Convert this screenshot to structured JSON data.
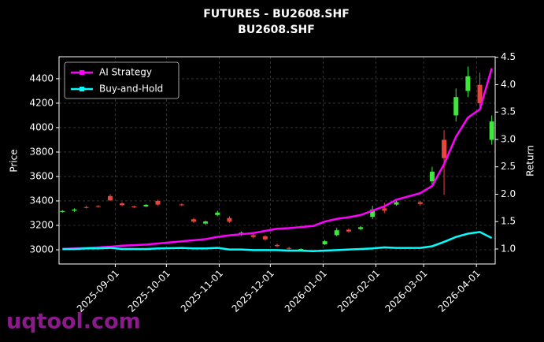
{
  "chart_data": {
    "type": "candlestick",
    "title": "FUTURES - BU2608.SHF",
    "subtitle": "BU2608.SHF",
    "ylabel": "Price",
    "y2label": "Return",
    "watermark": "uqtool.com",
    "x": [
      "2025-08-01",
      "2025-08-08",
      "2025-08-15",
      "2025-08-22",
      "2025-08-29",
      "2025-09-05",
      "2025-09-12",
      "2025-09-19",
      "2025-09-26",
      "2025-10-10",
      "2025-10-17",
      "2025-10-24",
      "2025-10-31",
      "2025-11-07",
      "2025-11-14",
      "2025-11-21",
      "2025-11-28",
      "2025-12-05",
      "2025-12-12",
      "2025-12-19",
      "2025-12-26",
      "2026-01-02",
      "2026-01-09",
      "2026-01-16",
      "2026-01-23",
      "2026-01-30",
      "2026-02-06",
      "2026-02-13",
      "2026-02-27",
      "2026-03-06",
      "2026-03-13",
      "2026-03-20",
      "2026-03-27",
      "2026-04-03",
      "2026-04-10"
    ],
    "open": [
      3310,
      3320,
      3350,
      3358,
      3440,
      3380,
      3355,
      3355,
      3400,
      3372,
      3250,
      3215,
      3285,
      3260,
      3125,
      3120,
      3110,
      3040,
      3015,
      3000,
      2995,
      3045,
      3120,
      3165,
      3170,
      3270,
      3340,
      3370,
      3390,
      3560,
      3900,
      4100,
      4300,
      4350,
      3900
    ],
    "high": [
      3325,
      3340,
      3360,
      3366,
      3455,
      3390,
      3362,
      3375,
      3410,
      3380,
      3262,
      3240,
      3320,
      3275,
      3150,
      3135,
      3120,
      3050,
      3025,
      3012,
      3002,
      3080,
      3180,
      3175,
      3195,
      3360,
      3385,
      3410,
      3400,
      3680,
      3980,
      4320,
      4500,
      4450,
      4100
    ],
    "low": [
      3305,
      3312,
      3338,
      3345,
      3400,
      3358,
      3340,
      3350,
      3362,
      3358,
      3220,
      3205,
      3275,
      3220,
      3115,
      3095,
      3075,
      3020,
      3000,
      2992,
      2985,
      3040,
      3110,
      3140,
      3160,
      3250,
      3300,
      3360,
      3360,
      3520,
      3450,
      4050,
      4250,
      4150,
      3860
    ],
    "close": [
      3318,
      3330,
      3345,
      3352,
      3405,
      3365,
      3348,
      3368,
      3370,
      3365,
      3230,
      3232,
      3305,
      3230,
      3140,
      3105,
      3085,
      3030,
      3008,
      3006,
      2990,
      3070,
      3160,
      3150,
      3185,
      3330,
      3320,
      3390,
      3375,
      3640,
      3750,
      4250,
      4420,
      4200,
      4050
    ],
    "up_color": "#3ee63e",
    "down_color": "#e8463c",
    "series": [
      {
        "name": "AI Strategy",
        "color": "#ff00ff",
        "axis": "y2",
        "values": [
          1.0,
          1.01,
          1.02,
          1.03,
          1.04,
          1.06,
          1.07,
          1.08,
          1.1,
          1.14,
          1.16,
          1.18,
          1.22,
          1.25,
          1.27,
          1.29,
          1.33,
          1.37,
          1.38,
          1.4,
          1.42,
          1.5,
          1.55,
          1.58,
          1.62,
          1.7,
          1.78,
          1.9,
          2.02,
          2.15,
          2.55,
          3.05,
          3.4,
          3.55,
          4.3
        ]
      },
      {
        "name": "Buy-and-Hold",
        "color": "#00ffff",
        "axis": "y2",
        "values": [
          1.0,
          1.0,
          1.01,
          1.01,
          1.02,
          1.0,
          1.0,
          1.0,
          1.01,
          1.02,
          1.01,
          1.01,
          1.02,
          0.99,
          0.99,
          0.98,
          0.98,
          0.98,
          0.97,
          0.97,
          0.96,
          0.97,
          0.98,
          0.99,
          1.0,
          1.01,
          1.03,
          1.02,
          1.02,
          1.05,
          1.13,
          1.22,
          1.28,
          1.31,
          1.2
        ]
      }
    ],
    "xlim": [
      "2025-07-30",
      "2026-04-12"
    ],
    "xticks": [
      "2025-09-01",
      "2025-10-01",
      "2025-11-01",
      "2025-12-01",
      "2026-01-01",
      "2026-02-01",
      "2026-03-01",
      "2026-04-01"
    ],
    "ylim": [
      2884,
      4580
    ],
    "yticks": [
      3000,
      3200,
      3400,
      3600,
      3800,
      4000,
      4200,
      4400
    ],
    "y2lim": [
      0.726,
      4.51
    ],
    "y2ticks": [
      {
        "value": 1,
        "label": "1.0"
      },
      {
        "value": 1.5,
        "label": "1.5"
      },
      {
        "value": 2,
        "label": "2.0"
      },
      {
        "value": 2.5,
        "label": "2.5"
      },
      {
        "value": 3,
        "label": "3.0"
      },
      {
        "value": 3.5,
        "label": "3.5"
      },
      {
        "value": 4,
        "label": "4.0"
      },
      {
        "value": 4.5,
        "label": "4.5"
      }
    ],
    "grid": true,
    "legend": "upper left"
  }
}
